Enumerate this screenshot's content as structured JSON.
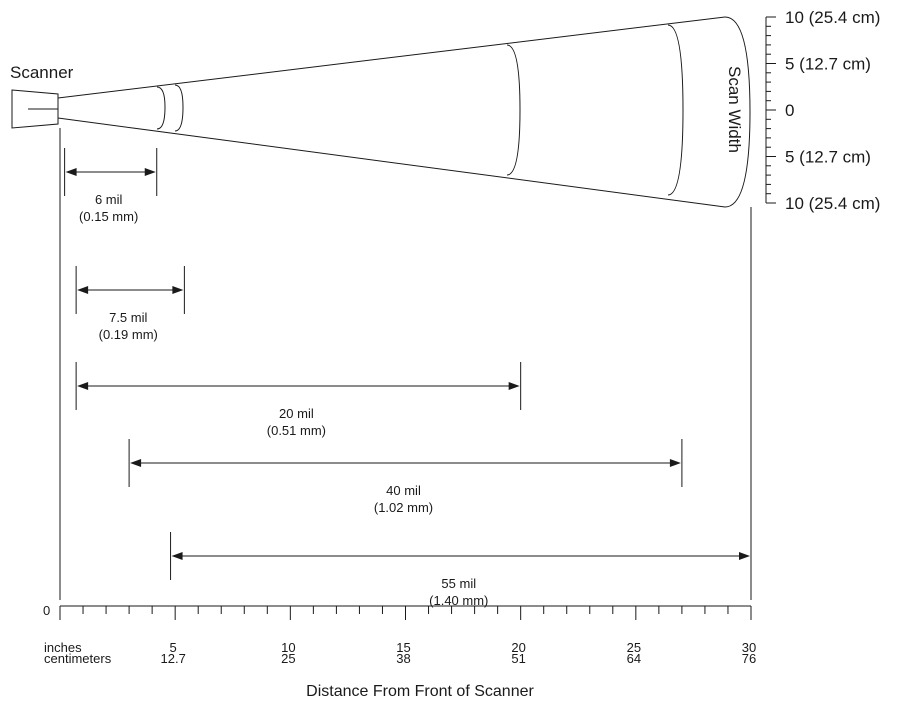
{
  "scanner_label": "Scanner",
  "scan_width_label": "Scan Width",
  "scan_width_scale": [
    {
      "label": "10 (25.4 cm)",
      "value": 10
    },
    {
      "label": "5 (12.7 cm)",
      "value": 5
    },
    {
      "label": "0",
      "value": 0
    },
    {
      "label": "5 (12.7 cm)",
      "value": -5
    },
    {
      "label": "10 (25.4 cm)",
      "value": -10
    }
  ],
  "ranges": [
    {
      "resolution": "6 mil",
      "metric": "(0.15 mm)",
      "start_in": 0.2,
      "end_in": 4.2
    },
    {
      "resolution": "7.5 mil",
      "metric": "(0.19 mm)",
      "start_in": 0.7,
      "end_in": 5.4
    },
    {
      "resolution": "20 mil",
      "metric": "(0.51 mm)",
      "start_in": 0.7,
      "end_in": 20
    },
    {
      "resolution": "40 mil",
      "metric": "(1.02 mm)",
      "start_in": 3.0,
      "end_in": 27
    },
    {
      "resolution": "55 mil",
      "metric": "(1.40 mm)",
      "start_in": 4.8,
      "end_in": 30
    }
  ],
  "distance_axis": {
    "origin_label": "0",
    "inches_label": "inches",
    "centimeters_label": "centimeters",
    "title": "Distance From Front of Scanner",
    "ticks": [
      {
        "inches": "5",
        "cm": "12.7"
      },
      {
        "inches": "10",
        "cm": "25"
      },
      {
        "inches": "15",
        "cm": "38"
      },
      {
        "inches": "20",
        "cm": "51"
      },
      {
        "inches": "25",
        "cm": "64"
      },
      {
        "inches": "30",
        "cm": "76"
      }
    ]
  }
}
